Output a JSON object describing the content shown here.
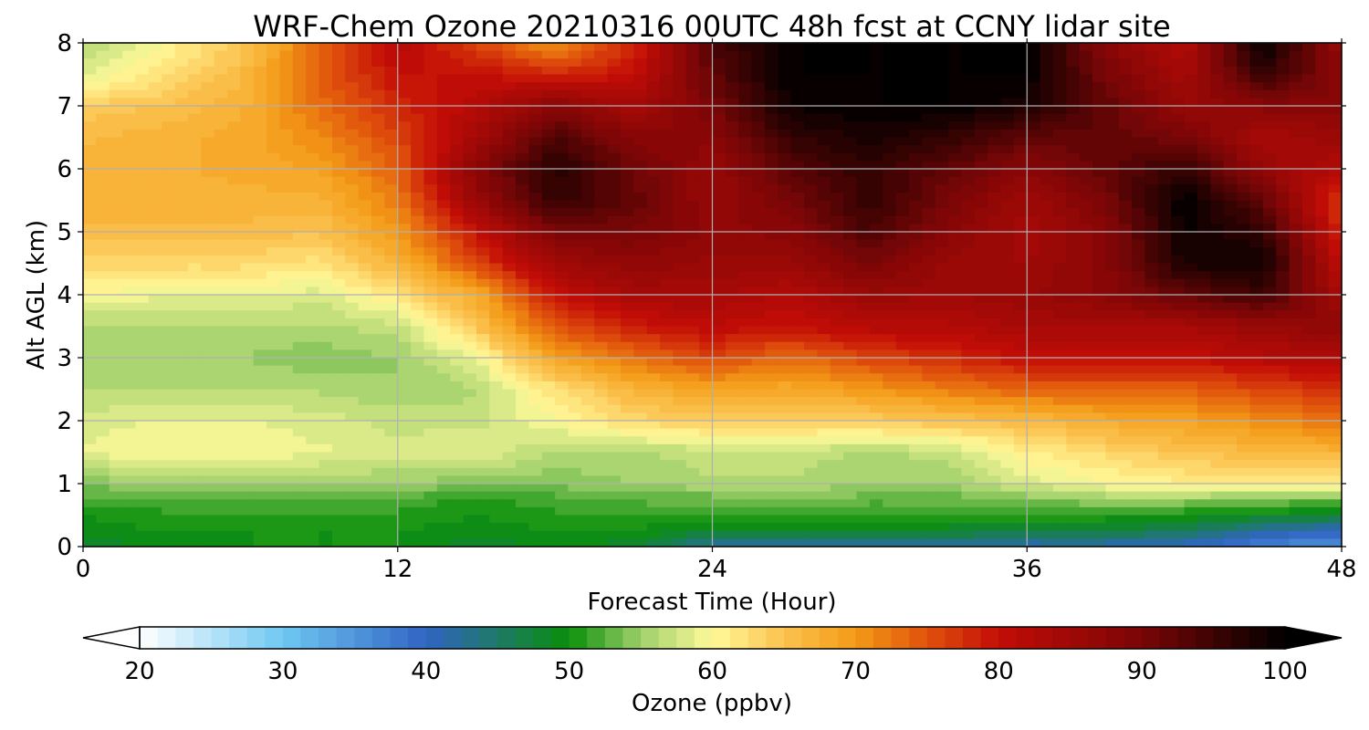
{
  "chart_data": {
    "type": "heatmap",
    "title": "WRF-Chem Ozone  20210316 00UTC 48h fcst at CCNY lidar site",
    "xlabel": "Forecast Time (Hour)",
    "ylabel": "Alt AGL (km)",
    "xlim": [
      0,
      48
    ],
    "ylim": [
      0,
      8
    ],
    "xticks": [
      0,
      12,
      24,
      36,
      48
    ],
    "yticks": [
      0,
      1,
      2,
      3,
      4,
      5,
      6,
      7,
      8
    ],
    "grid": true,
    "x": [
      0,
      3,
      6,
      9,
      12,
      15,
      18,
      21,
      24,
      27,
      30,
      33,
      36,
      39,
      42,
      45,
      48
    ],
    "y": [
      0,
      0.25,
      0.5,
      0.75,
      1,
      1.5,
      2,
      2.5,
      3,
      3.5,
      4,
      4.5,
      5,
      5.5,
      6,
      6.5,
      7,
      7.5,
      8
    ],
    "z": [
      [
        48,
        49,
        50,
        50,
        50,
        48,
        49,
        48,
        42,
        41,
        42,
        42,
        41,
        41,
        40,
        37,
        35
      ],
      [
        49,
        50,
        50,
        50,
        50,
        49,
        50,
        50,
        48,
        48,
        48,
        48,
        47,
        47,
        46,
        42,
        40
      ],
      [
        50,
        51,
        51,
        51,
        51,
        50,
        51,
        51,
        51,
        51,
        51,
        51,
        51,
        51,
        50,
        49,
        48
      ],
      [
        52,
        52,
        52,
        52,
        52,
        51,
        52,
        53,
        53,
        54,
        53,
        53,
        54,
        55,
        55,
        54,
        53
      ],
      [
        54,
        55,
        55,
        55,
        55,
        54,
        54,
        55,
        56,
        56,
        55,
        55,
        58,
        60,
        61,
        61,
        61
      ],
      [
        59,
        60,
        60,
        59,
        58,
        59,
        56,
        56,
        57,
        57,
        56,
        57,
        61,
        63,
        65,
        66,
        67
      ],
      [
        58,
        59,
        59,
        58,
        57,
        57,
        60,
        63,
        64,
        64,
        64,
        65,
        66,
        68,
        69,
        71,
        73
      ],
      [
        56,
        56,
        56,
        56,
        55,
        56,
        62,
        67,
        69,
        68,
        70,
        72,
        74,
        74,
        74,
        76,
        78
      ],
      [
        55,
        55,
        55,
        54,
        55,
        59,
        69,
        73,
        76,
        73,
        76,
        78,
        80,
        80,
        80,
        82,
        82
      ],
      [
        56,
        56,
        56,
        56,
        57,
        65,
        75,
        79,
        81,
        80,
        82,
        82,
        84,
        84,
        84,
        86,
        88
      ],
      [
        60,
        59,
        59,
        58,
        62,
        68,
        80,
        84,
        84,
        82,
        86,
        85,
        86,
        88,
        92,
        95,
        84
      ],
      [
        63,
        63,
        63,
        62,
        67,
        76,
        85,
        87,
        86,
        86,
        90,
        86,
        85,
        88,
        98,
        99,
        80
      ],
      [
        66,
        66,
        66,
        65,
        70,
        80,
        90,
        90,
        87,
        88,
        94,
        88,
        84,
        88,
        99,
        96,
        78
      ],
      [
        67,
        67,
        67,
        67,
        72,
        86,
        96,
        92,
        86,
        90,
        96,
        90,
        85,
        90,
        100,
        92,
        76
      ],
      [
        67,
        67,
        68,
        69,
        74,
        88,
        97,
        91,
        86,
        93,
        96,
        92,
        88,
        92,
        96,
        86,
        82
      ],
      [
        66,
        67,
        68,
        71,
        76,
        84,
        94,
        88,
        88,
        96,
        98,
        96,
        92,
        92,
        90,
        84,
        86
      ],
      [
        64,
        65,
        67,
        73,
        78,
        82,
        88,
        84,
        90,
        99,
        100,
        100,
        98,
        92,
        86,
        88,
        88
      ],
      [
        58,
        62,
        66,
        74,
        80,
        80,
        78,
        80,
        92,
        100,
        100,
        100,
        100,
        90,
        84,
        96,
        88
      ],
      [
        56,
        60,
        64,
        74,
        82,
        76,
        70,
        78,
        94,
        100,
        100,
        100,
        100,
        88,
        82,
        100,
        86
      ]
    ],
    "colorbar": {
      "label": "Ozone  (ppbv)",
      "min": 20,
      "max": 100,
      "ticks": [
        20,
        30,
        40,
        50,
        60,
        70,
        80,
        90,
        100
      ],
      "extend": "both",
      "stops": [
        {
          "v": 20,
          "c": "#ffffff"
        },
        {
          "v": 30,
          "c": "#6fc8f2"
        },
        {
          "v": 40,
          "c": "#3164c4"
        },
        {
          "v": 50,
          "c": "#0a8f0a"
        },
        {
          "v": 55,
          "c": "#9fd06a"
        },
        {
          "v": 60,
          "c": "#fffa9a"
        },
        {
          "v": 65,
          "c": "#fbc24e"
        },
        {
          "v": 70,
          "c": "#f39a16"
        },
        {
          "v": 75,
          "c": "#e0520c"
        },
        {
          "v": 80,
          "c": "#c30c06"
        },
        {
          "v": 90,
          "c": "#7a0606"
        },
        {
          "v": 100,
          "c": "#000000"
        }
      ]
    }
  }
}
